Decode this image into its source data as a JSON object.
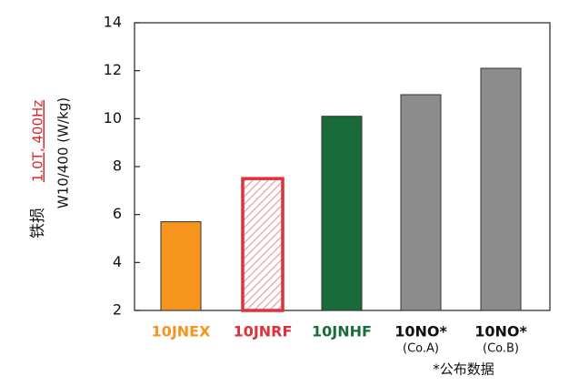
{
  "chart_data": {
    "type": "bar",
    "ylabel": {
      "main": "铁损",
      "condition": "1.0T, 400Hz",
      "unit": "W10/400 (W/kg)"
    },
    "categories": [
      "10JNEX",
      "10JNRF",
      "10JNHF",
      "10NO*",
      "10NO*"
    ],
    "category_notes": [
      null,
      null,
      null,
      "(Co.A)",
      "(Co.B)"
    ],
    "values": [
      5.7,
      7.5,
      10.1,
      11.0,
      12.1
    ],
    "colors": [
      "#f7941d",
      "#e0303a",
      "#1a6b3a",
      "#8c8c8c",
      "#8c8c8c"
    ],
    "label_colors": [
      "#f7941d",
      "#e0303a",
      "#1a6b3a",
      "#111111",
      "#111111"
    ],
    "hatched": [
      false,
      true,
      false,
      false,
      false
    ],
    "ylim": [
      2,
      14
    ],
    "yticks": [
      2,
      4,
      6,
      8,
      10,
      12,
      14
    ],
    "footnote": "*公布数据"
  }
}
